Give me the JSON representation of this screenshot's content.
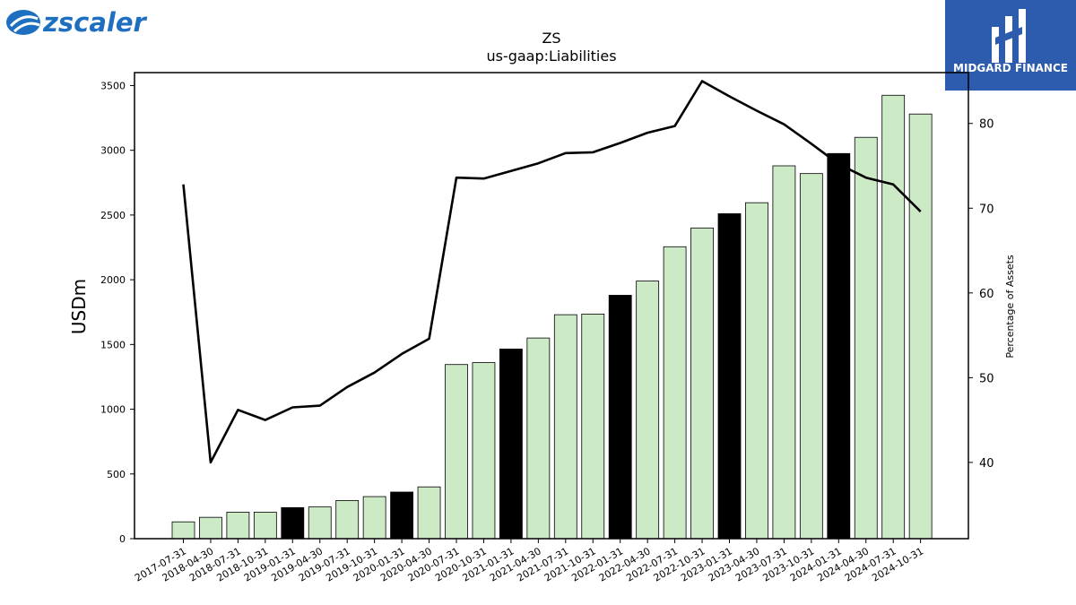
{
  "brand": {
    "left_logo": "zscaler",
    "right_logo": "MIDGARD FINANCE"
  },
  "chart_data": {
    "type": "bar",
    "title": "ZS",
    "subtitle": "us-gaap:Liabilities",
    "ylabel": "USDm",
    "y2label": "Percentage of Assets",
    "ylim": [
      0,
      3600
    ],
    "y2lim": [
      31,
      86
    ],
    "yticks": [
      0,
      500,
      1000,
      1500,
      2000,
      2500,
      3000,
      3500
    ],
    "y2ticks": [
      40,
      50,
      60,
      70,
      80
    ],
    "colors": {
      "bar": "#cdeac6",
      "highlight": "#000000",
      "line": "#000000"
    },
    "categories": [
      "2017-07-31",
      "2018-04-30",
      "2018-07-31",
      "2018-10-31",
      "2019-01-31",
      "2019-04-30",
      "2019-07-31",
      "2019-10-31",
      "2020-01-31",
      "2020-04-30",
      "2020-07-31",
      "2020-10-31",
      "2021-01-31",
      "2021-04-30",
      "2021-07-31",
      "2021-10-31",
      "2022-01-31",
      "2022-04-30",
      "2022-07-31",
      "2022-10-31",
      "2023-01-31",
      "2023-04-30",
      "2023-07-31",
      "2023-10-31",
      "2024-01-31",
      "2024-04-30",
      "2024-07-31",
      "2024-10-31"
    ],
    "series": [
      {
        "kind": "bar",
        "values": [
          130,
          165,
          205,
          205,
          240,
          245,
          295,
          325,
          360,
          400,
          1345,
          1360,
          1465,
          1550,
          1730,
          1735,
          1880,
          1990,
          2255,
          2400,
          2510,
          2595,
          2880,
          2820,
          2975,
          3100,
          3425,
          3280
        ]
      },
      {
        "kind": "line",
        "axis": "right",
        "values": [
          72.8,
          40.0,
          46.2,
          45.0,
          46.5,
          46.7,
          48.9,
          50.6,
          52.8,
          54.6,
          73.6,
          73.5,
          74.4,
          75.3,
          76.5,
          76.6,
          77.7,
          78.9,
          79.7,
          85.0,
          83.2,
          81.5,
          79.9,
          77.6,
          75.2,
          73.6,
          72.8,
          69.6
        ]
      }
    ],
    "highlight_indices": [
      4,
      8,
      12,
      16,
      20,
      24
    ]
  }
}
